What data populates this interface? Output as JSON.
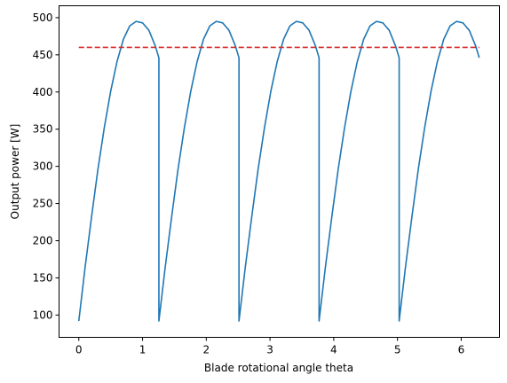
{
  "chart_data": {
    "type": "line",
    "title": "",
    "xlabel": "Blade rotational angle theta",
    "ylabel": "Output power [W]",
    "xlim": [
      -0.31,
      6.6
    ],
    "ylim": [
      70,
      516
    ],
    "x_ticks": [
      0,
      1,
      2,
      3,
      4,
      5,
      6
    ],
    "y_ticks": [
      100,
      150,
      200,
      250,
      300,
      350,
      400,
      450,
      500
    ],
    "grid": false,
    "legend": "none",
    "series": [
      {
        "color": "#1f77b4",
        "style": "solid",
        "period": 1.2566,
        "periods_shown": 5,
        "x_end": 6.283,
        "points_per_period": [
          {
            "x": 0.0,
            "y": 92
          },
          {
            "x": 0.1,
            "y": 165
          },
          {
            "x": 0.2,
            "y": 232
          },
          {
            "x": 0.3,
            "y": 296
          },
          {
            "x": 0.4,
            "y": 352
          },
          {
            "x": 0.5,
            "y": 401
          },
          {
            "x": 0.6,
            "y": 441
          },
          {
            "x": 0.7,
            "y": 471
          },
          {
            "x": 0.8,
            "y": 489
          },
          {
            "x": 0.9,
            "y": 495
          },
          {
            "x": 1.0,
            "y": 493
          },
          {
            "x": 1.1,
            "y": 483
          },
          {
            "x": 1.2,
            "y": 462
          },
          {
            "x": 1.2566,
            "y": 446
          }
        ]
      },
      {
        "color": "#d62728",
        "style": "dashed",
        "x": [
          0,
          6.283
        ],
        "y": [
          460,
          460
        ]
      }
    ]
  },
  "colors": {
    "background": "#ffffff",
    "axes": "#000000"
  }
}
